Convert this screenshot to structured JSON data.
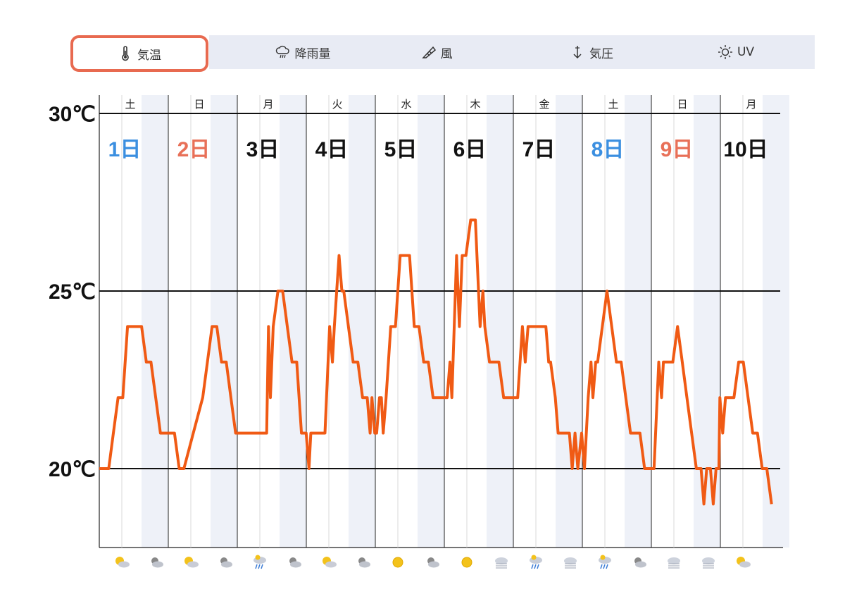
{
  "tabs": [
    {
      "label": "気温",
      "icon": "thermometer-icon",
      "active": true
    },
    {
      "label": "降雨量",
      "icon": "rain-cloud-icon",
      "active": false
    },
    {
      "label": "風",
      "icon": "wind-sock-icon",
      "active": false
    },
    {
      "label": "気圧",
      "icon": "pressure-arrow-icon",
      "active": false
    },
    {
      "label": "UV",
      "icon": "sun-icon",
      "active": false
    }
  ],
  "colors": {
    "line": "#f05a14",
    "saturday": "#3b8fe0",
    "holiday": "#e87058",
    "weekday": "#111111",
    "night_band": "#eef1f8",
    "active_tab_border": "#e86a50"
  },
  "chart_data": {
    "type": "line",
    "ylim": [
      18,
      30
    ],
    "yticks": [
      {
        "value": 30,
        "label": "30℃"
      },
      {
        "value": 25,
        "label": "25℃"
      },
      {
        "value": 20,
        "label": "20℃"
      }
    ],
    "days": [
      {
        "weekday": "土",
        "date": "1日",
        "kind": "saturday"
      },
      {
        "weekday": "日",
        "date": "2日",
        "kind": "holiday"
      },
      {
        "weekday": "月",
        "date": "3日",
        "kind": "weekday"
      },
      {
        "weekday": "火",
        "date": "4日",
        "kind": "weekday"
      },
      {
        "weekday": "水",
        "date": "5日",
        "kind": "weekday"
      },
      {
        "weekday": "木",
        "date": "6日",
        "kind": "weekday"
      },
      {
        "weekday": "金",
        "date": "7日",
        "kind": "weekday"
      },
      {
        "weekday": "土",
        "date": "8日",
        "kind": "saturday"
      },
      {
        "weekday": "日",
        "date": "9日",
        "kind": "holiday"
      },
      {
        "weekday": "月",
        "date": "10日",
        "kind": "weekday"
      }
    ],
    "x_unit": "hour",
    "series": [
      {
        "points": [
          [
            0,
            20
          ],
          [
            1,
            20
          ],
          [
            1.5,
            21
          ],
          [
            2,
            22
          ],
          [
            2.5,
            22
          ],
          [
            3,
            24
          ],
          [
            3.5,
            24
          ],
          [
            4,
            24
          ],
          [
            4.5,
            24
          ],
          [
            5,
            23
          ],
          [
            5.5,
            23
          ],
          [
            6,
            22
          ],
          [
            6.5,
            21
          ],
          [
            7,
            21
          ],
          [
            7.5,
            21
          ],
          [
            8,
            21
          ],
          [
            8.5,
            20
          ],
          [
            9,
            20
          ],
          [
            10,
            21
          ],
          [
            11,
            22
          ],
          [
            12,
            24
          ],
          [
            12.5,
            24
          ],
          [
            13,
            23
          ],
          [
            13.5,
            23
          ],
          [
            14,
            22
          ],
          [
            14.5,
            21
          ],
          [
            15,
            21
          ],
          [
            16,
            21
          ],
          [
            16.5,
            21
          ],
          [
            17,
            21
          ],
          [
            17.5,
            21
          ],
          [
            17.8,
            21
          ],
          [
            18,
            24
          ],
          [
            18.2,
            22
          ],
          [
            18.5,
            24
          ],
          [
            19,
            25
          ],
          [
            19.5,
            25
          ],
          [
            20,
            24
          ],
          [
            20.5,
            23
          ],
          [
            21,
            23
          ],
          [
            21.5,
            21
          ],
          [
            22,
            21
          ],
          [
            22.3,
            20
          ],
          [
            22.5,
            21
          ],
          [
            23,
            21
          ],
          [
            24,
            21
          ],
          [
            24.5,
            24
          ],
          [
            24.8,
            23
          ],
          [
            25,
            24
          ],
          [
            25.5,
            26
          ],
          [
            25.8,
            25
          ],
          [
            26,
            25
          ],
          [
            26.5,
            24
          ],
          [
            27,
            23
          ],
          [
            27.5,
            23
          ],
          [
            28,
            22
          ],
          [
            28.5,
            22
          ],
          [
            28.8,
            21
          ],
          [
            29,
            22
          ],
          [
            29.3,
            21
          ],
          [
            29.5,
            21
          ],
          [
            29.8,
            22
          ],
          [
            30,
            22
          ],
          [
            30.2,
            21
          ],
          [
            30.5,
            22
          ],
          [
            31,
            24
          ],
          [
            31.5,
            24
          ],
          [
            32,
            26
          ],
          [
            32.5,
            26
          ],
          [
            33,
            26
          ],
          [
            33.5,
            24
          ],
          [
            34,
            24
          ],
          [
            34.5,
            23
          ],
          [
            35,
            23
          ],
          [
            35.5,
            22
          ],
          [
            36,
            22
          ],
          [
            36.5,
            22
          ],
          [
            37,
            22
          ],
          [
            37.3,
            23
          ],
          [
            37.5,
            22
          ],
          [
            38,
            26
          ],
          [
            38.3,
            24
          ],
          [
            38.6,
            26
          ],
          [
            39,
            26
          ],
          [
            39.5,
            27
          ],
          [
            40,
            27
          ],
          [
            40.5,
            24
          ],
          [
            40.8,
            25
          ],
          [
            41,
            24
          ],
          [
            41.5,
            23
          ],
          [
            42,
            23
          ],
          [
            42.5,
            23
          ],
          [
            43,
            22
          ],
          [
            44,
            22
          ],
          [
            44.5,
            22
          ],
          [
            45,
            24
          ],
          [
            45.3,
            23
          ],
          [
            45.6,
            24
          ],
          [
            46,
            24
          ],
          [
            46.5,
            24
          ],
          [
            47,
            24
          ],
          [
            47.5,
            24
          ],
          [
            47.8,
            23
          ],
          [
            48,
            23
          ],
          [
            48.5,
            22
          ],
          [
            48.8,
            21
          ],
          [
            49,
            21
          ],
          [
            49.5,
            21
          ],
          [
            50,
            21
          ],
          [
            50.3,
            20
          ],
          [
            50.6,
            21
          ],
          [
            50.9,
            20
          ],
          [
            51.3,
            21
          ],
          [
            51.6,
            20
          ],
          [
            52,
            22
          ],
          [
            52.3,
            23
          ],
          [
            52.5,
            22
          ],
          [
            52.8,
            23
          ],
          [
            53,
            23
          ],
          [
            53.5,
            24
          ],
          [
            54,
            25
          ],
          [
            54.5,
            24
          ],
          [
            55,
            23
          ],
          [
            55.5,
            23
          ],
          [
            56,
            22
          ],
          [
            56.5,
            21
          ],
          [
            57,
            21
          ],
          [
            57.5,
            21
          ],
          [
            58,
            20
          ],
          [
            58.5,
            20
          ],
          [
            58.8,
            20
          ],
          [
            59,
            20
          ],
          [
            59.5,
            23
          ],
          [
            59.8,
            22
          ],
          [
            60,
            23
          ],
          [
            60.5,
            23
          ],
          [
            61,
            23
          ],
          [
            61.5,
            24
          ],
          [
            62,
            23
          ],
          [
            62.5,
            22
          ],
          [
            63,
            21
          ],
          [
            63.5,
            20
          ],
          [
            64,
            20
          ],
          [
            64.3,
            19
          ],
          [
            64.6,
            20
          ],
          [
            65,
            20
          ],
          [
            65.3,
            19
          ],
          [
            65.6,
            20
          ],
          [
            65.9,
            20
          ],
          [
            66,
            22
          ],
          [
            66.3,
            21
          ],
          [
            66.6,
            22
          ],
          [
            67,
            22
          ],
          [
            67.5,
            22
          ],
          [
            68,
            23
          ],
          [
            68.5,
            23
          ],
          [
            69,
            22
          ],
          [
            69.5,
            21
          ],
          [
            70,
            21
          ],
          [
            70.5,
            20
          ],
          [
            71,
            20
          ],
          [
            71.5,
            19
          ]
        ]
      }
    ],
    "weather_icons": [
      "sun-cloud",
      "cloud-moon",
      "sun-cloud",
      "cloud-moon",
      "rain",
      "cloud-moon",
      "sun-cloud",
      "cloud-moon",
      "sun",
      "cloud-moon",
      "sun",
      "fog",
      "rain",
      "fog",
      "rain",
      "cloud-moon",
      "fog",
      "fog",
      "sun-cloud"
    ]
  }
}
